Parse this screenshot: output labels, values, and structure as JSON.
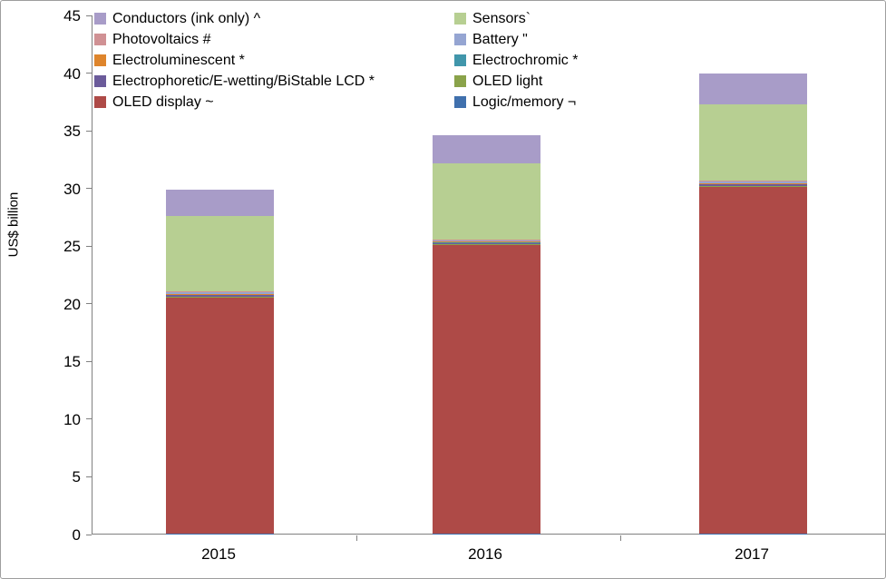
{
  "chart": {
    "ylabel": "US$ billion",
    "axis_color": "#808080",
    "background": "#ffffff"
  },
  "chart_data": {
    "type": "bar",
    "stacked": true,
    "title": "",
    "xlabel": "",
    "ylabel": "US$ billion",
    "categories": [
      "2015",
      "2016",
      "2017"
    ],
    "series": [
      {
        "name": "Conductors (ink only) ^",
        "color": "#a89cc8",
        "values": [
          2.3,
          2.4,
          2.7
        ]
      },
      {
        "name": "Sensors`",
        "color": "#b7cf92",
        "values": [
          6.5,
          6.6,
          6.6
        ]
      },
      {
        "name": "Photovoltaics #",
        "color": "#d09194",
        "values": [
          0.05,
          0.05,
          0.05
        ]
      },
      {
        "name": "Battery \"",
        "color": "#95a5d2",
        "values": [
          0.15,
          0.15,
          0.15
        ]
      },
      {
        "name": "Electroluminescent *",
        "color": "#de852c",
        "values": [
          0.02,
          0.02,
          0.02
        ]
      },
      {
        "name": "Electrochromic *",
        "color": "#4196ab",
        "values": [
          0.02,
          0.02,
          0.02
        ]
      },
      {
        "name": "Electrophoretic/E-wetting/BiStable LCD *",
        "color": "#6b5b9a",
        "values": [
          0.2,
          0.2,
          0.2
        ]
      },
      {
        "name": "OLED light",
        "color": "#8aa34a",
        "values": [
          0.05,
          0.05,
          0.05
        ]
      },
      {
        "name": "OLED display ~",
        "color": "#ae4a47",
        "values": [
          20.5,
          25.0,
          30.1
        ]
      },
      {
        "name": "Logic/memory ¬",
        "color": "#4070ad",
        "values": [
          0.01,
          0.01,
          0.01
        ]
      }
    ],
    "stack_order_bottom_to_top": "reverse of legend order (Logic/memory at bottom, Conductors on top)",
    "totals_approx": [
      29.8,
      34.5,
      39.9
    ],
    "ylim": [
      0,
      45
    ],
    "yticks": [
      0,
      5,
      10,
      15,
      20,
      25,
      30,
      35,
      40,
      45
    ],
    "grid": false,
    "legend": {
      "position": "top-left, overlaying plot",
      "columns": 2
    }
  }
}
